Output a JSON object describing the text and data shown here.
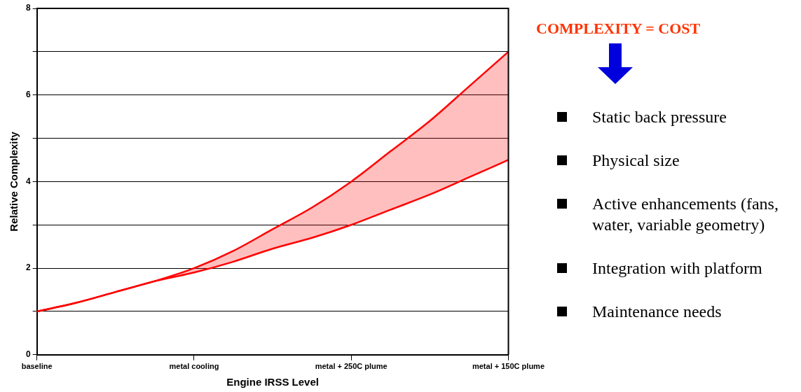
{
  "chart_data": {
    "type": "line",
    "xlabel": "Engine IRSS Level",
    "ylabel": "Relative Complexity",
    "categories": [
      "baseline",
      null,
      null,
      null,
      "metal cooling",
      null,
      null,
      null,
      "metal + 250C plume",
      null,
      null,
      null,
      "metal + 150C plume"
    ],
    "ylim": [
      0,
      8
    ],
    "yticks": [
      0,
      {
        "value": 1,
        "label": null
      },
      2,
      {
        "value": 3,
        "label": null
      },
      4,
      {
        "value": 5,
        "label": null
      },
      6,
      {
        "value": 7,
        "label": null
      },
      8
    ],
    "grid": "y",
    "legend": false,
    "marker": "none",
    "line_style": "solid",
    "series": [
      {
        "color": "#ff0000",
        "values": [
          1,
          1.2,
          1.45,
          1.7,
          2,
          2.4,
          2.9,
          3.4,
          4,
          4.7,
          5.4,
          6.2,
          7
        ]
      },
      {
        "color": "#ff0000",
        "values": [
          1,
          1.2,
          1.45,
          1.7,
          1.9,
          2.15,
          2.45,
          2.7,
          3,
          3.35,
          3.7,
          4.1,
          4.5
        ],
        "lower": [
          1,
          1.2,
          1.45,
          1.7,
          1.9,
          2.15,
          2.45,
          2.7,
          3,
          3.35,
          3.7,
          4.1,
          4.5
        ],
        "upper": [
          1,
          1.2,
          1.45,
          1.7,
          2,
          2.4,
          2.9,
          3.4,
          4,
          4.7,
          5.4,
          6.2,
          7
        ]
      }
    ],
    "annotations": [
      "COMPLEXITY = COST",
      "Static back pressure",
      "Physical size",
      "Active enhancements (fans, water, variable geometry)",
      "Integration with platform",
      "Maintenance needs"
    ]
  }
}
